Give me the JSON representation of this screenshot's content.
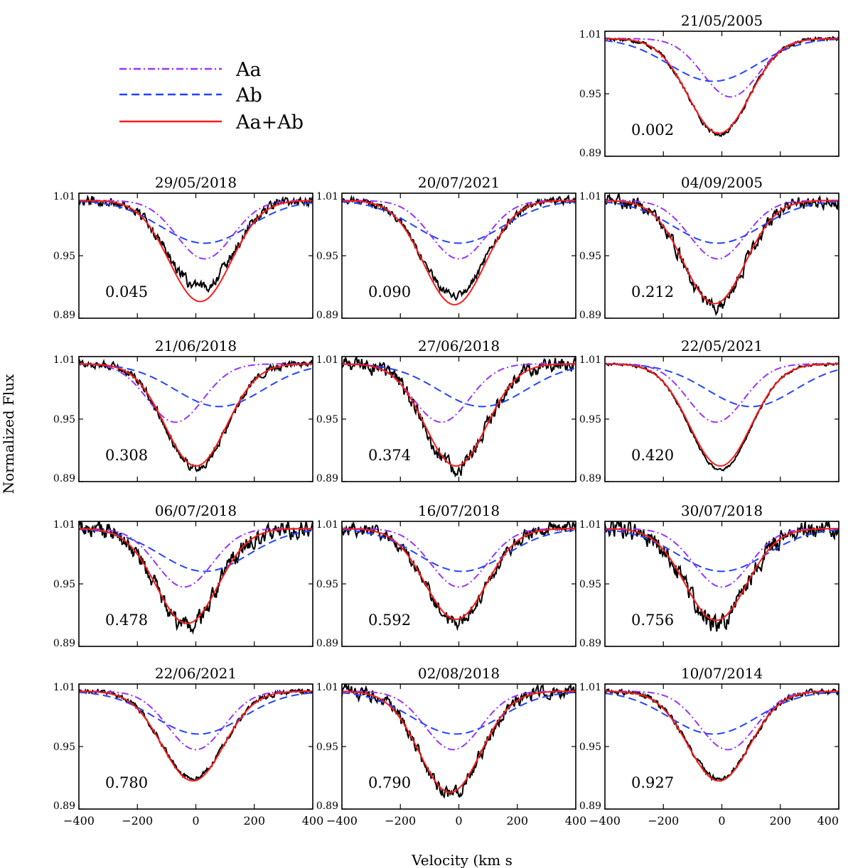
{
  "chart_data": {
    "type": "line",
    "ylabel": "Normalized Flux",
    "xlabel": "Velocity (km s",
    "xlim": [
      -400,
      400
    ],
    "ylim": [
      0.89,
      1.01
    ],
    "x_ticks": [
      -400,
      -200,
      0,
      200,
      400
    ],
    "x_tick_labels": [
      "−400",
      "−200",
      "0",
      "200",
      "400"
    ],
    "y_ticks": [
      1.01,
      0.95,
      0.89
    ],
    "y_tick_labels": [
      "1.01",
      "0.95",
      "0.89"
    ],
    "legend": {
      "placement": "top-left",
      "entries": [
        {
          "label": "Aa",
          "color": "#9933ff",
          "style": "dash-dot"
        },
        {
          "label": "Ab",
          "color": "#2244ff",
          "style": "dashed"
        },
        {
          "label": "Aa+Ab",
          "color": "#ff1a1a",
          "style": "solid"
        }
      ]
    },
    "series_styles": {
      "observed": {
        "color": "#000000"
      },
      "Aa": {
        "color": "#9933ff"
      },
      "Ab": {
        "color": "#2244ff"
      },
      "Aa+Ab": {
        "color": "#ff1a1a"
      }
    },
    "panels": [
      {
        "date": "21/05/2005",
        "phase": "0.002",
        "aa_center": 30,
        "ab_center": -30,
        "sum_center": -10,
        "sum_min": 0.912,
        "obs_offset": -0.001,
        "noise": 0.0015
      },
      {
        "date": "29/05/2018",
        "phase": "0.045",
        "aa_center": 30,
        "ab_center": 30,
        "sum_center": 15,
        "sum_min": 0.906,
        "obs_offset": 0.013,
        "noise": 0.004
      },
      {
        "date": "20/07/2021",
        "phase": "0.090",
        "aa_center": 0,
        "ab_center": 0,
        "sum_center": -15,
        "sum_min": 0.903,
        "obs_offset": 0.008,
        "noise": 0.003
      },
      {
        "date": "04/09/2005",
        "phase": "0.212",
        "aa_center": -15,
        "ab_center": -15,
        "sum_center": -25,
        "sum_min": 0.904,
        "obs_offset": -0.004,
        "noise": 0.005
      },
      {
        "date": "21/06/2018",
        "phase": "0.308",
        "aa_center": -70,
        "ab_center": 80,
        "sum_center": 0,
        "sum_min": 0.905,
        "obs_offset": -0.002,
        "noise": 0.003
      },
      {
        "date": "27/06/2018",
        "phase": "0.374",
        "aa_center": -60,
        "ab_center": 80,
        "sum_center": -10,
        "sum_min": 0.905,
        "obs_offset": -0.003,
        "noise": 0.006
      },
      {
        "date": "22/05/2021",
        "phase": "0.420",
        "aa_center": -20,
        "ab_center": 100,
        "sum_center": -5,
        "sum_min": 0.905,
        "obs_offset": -0.004,
        "noise": 0.001
      },
      {
        "date": "06/07/2018",
        "phase": "0.478",
        "aa_center": -40,
        "ab_center": 30,
        "sum_center": -30,
        "sum_min": 0.912,
        "obs_offset": -0.005,
        "noise": 0.007
      },
      {
        "date": "16/07/2018",
        "phase": "0.592",
        "aa_center": 0,
        "ab_center": 10,
        "sum_center": -10,
        "sum_min": 0.916,
        "obs_offset": -0.002,
        "noise": 0.005
      },
      {
        "date": "30/07/2018",
        "phase": "0.756",
        "aa_center": 0,
        "ab_center": 0,
        "sum_center": -20,
        "sum_min": 0.915,
        "obs_offset": -0.003,
        "noise": 0.007
      },
      {
        "date": "22/06/2021",
        "phase": "0.780",
        "aa_center": 0,
        "ab_center": 10,
        "sum_center": -10,
        "sum_min": 0.917,
        "obs_offset": 0.002,
        "noise": 0.002
      },
      {
        "date": "02/08/2018",
        "phase": "0.790",
        "aa_center": -20,
        "ab_center": -10,
        "sum_center": -30,
        "sum_min": 0.906,
        "obs_offset": -0.002,
        "noise": 0.005
      },
      {
        "date": "10/07/2014",
        "phase": "0.927",
        "aa_center": 20,
        "ab_center": -30,
        "sum_center": -10,
        "sum_min": 0.917,
        "obs_offset": 0.002,
        "noise": 0.002
      }
    ]
  }
}
